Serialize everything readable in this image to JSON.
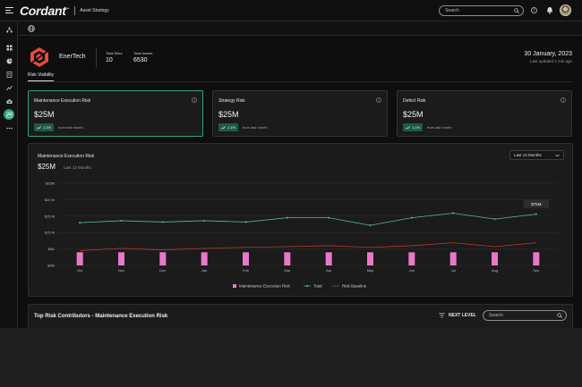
{
  "topbar": {
    "brand": "Cordant",
    "brand_mark": "™",
    "section": "Asset Strategy",
    "search_placeholder": "Search"
  },
  "sidebar": {
    "items": [
      "hierarchy-icon",
      "grid-icon",
      "pie-chart-icon",
      "document-icon",
      "line-chart-icon",
      "inspection-icon",
      "strategy-icon",
      "more-icon"
    ],
    "active_index": 6
  },
  "header": {
    "company": "EnerTech",
    "total_sites_label": "Total Sites",
    "total_sites": "10",
    "total_assets_label": "Total Assets",
    "total_assets": "6530",
    "date": "30 January, 2023",
    "updated": "Last updated 1 min ago",
    "tab": "Risk Visibility"
  },
  "cards": [
    {
      "title": "Maintenance Execution Risk",
      "amount": "$25M",
      "change": "1.1%",
      "change_text": "from last month",
      "selected": true
    },
    {
      "title": "Strategy Risk",
      "amount": "$25M",
      "change": "1.1%",
      "change_text": "from last month",
      "selected": false
    },
    {
      "title": "Defect Risk",
      "amount": "$25M",
      "change": "1.1%",
      "change_text": "from last month",
      "selected": false
    }
  ],
  "chart": {
    "title": "Maintenance Execution Risk",
    "amount": "$25M",
    "range_label": "Last 12 Months",
    "period_selected": "Last 12 Months",
    "tooltip": "$75M"
  },
  "chart_data": {
    "type": "bar",
    "categories": [
      "Oct",
      "Nov",
      "Dec",
      "Jan",
      "Feb",
      "Mar",
      "Apr",
      "May",
      "Jun",
      "Jul",
      "Aug",
      "Sep"
    ],
    "ylim": [
      0,
      250
    ],
    "yticks": [
      "$0M",
      "$5K",
      "$15 M",
      "$15 M",
      "$20 M",
      "$25M"
    ],
    "series": [
      {
        "name": "Maintenance Execution Risk",
        "type": "bar",
        "color": "#e879c8",
        "values": [
          40,
          40,
          40,
          40,
          40,
          40,
          40,
          40,
          40,
          40,
          40,
          40
        ]
      },
      {
        "name": "Total",
        "type": "line",
        "color": "#5fb3a8",
        "values": [
          130,
          136,
          132,
          136,
          132,
          145,
          145,
          122,
          145,
          159,
          141,
          156
        ]
      },
      {
        "name": "Risk Baseline",
        "type": "line",
        "color": "#c0392b",
        "values": [
          45,
          52,
          47,
          52,
          55,
          57,
          60,
          55,
          60,
          69,
          57,
          69
        ]
      }
    ],
    "legend": "bottom-center"
  },
  "contributors": {
    "title": "Top Risk Contributors  - Maintenance Execution Risk",
    "next_level": "NEXT LEVEL",
    "search_placeholder": "Search"
  },
  "colors": {
    "accent": "#2ea37a",
    "bar": "#e879c8",
    "total_line": "#5fb3a8",
    "baseline_line": "#c0392b"
  }
}
